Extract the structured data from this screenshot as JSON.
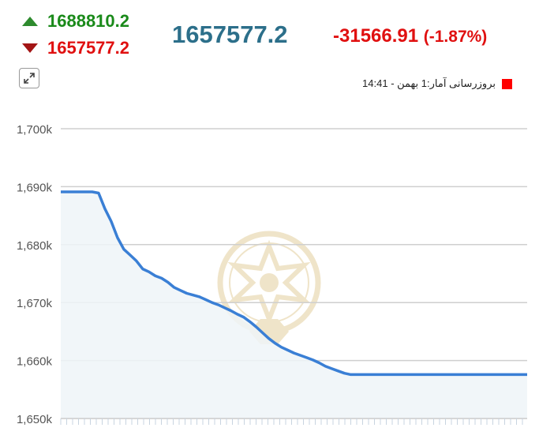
{
  "header": {
    "high_value": "1688810.2",
    "low_value": "1657577.2",
    "last_value": "1657577.2",
    "change_value": "-31566.91",
    "change_percent": "(-1.87%)",
    "up_icon": "triangle-up-icon",
    "down_icon": "triangle-down-icon",
    "expand_icon": "expand-icon"
  },
  "legend": {
    "label": "بروزرسانی آمار:1 بهمن - 14:41",
    "color": "#ff0000"
  },
  "colors": {
    "line": "#3a7fd5",
    "area": "#eef4f8",
    "up": "#2e8b2e",
    "down": "#a31515",
    "last": "#2c6f8a",
    "change": "#e01010"
  },
  "chart_data": {
    "type": "area",
    "title": "",
    "xlabel": "",
    "ylabel": "",
    "ylim": [
      1650000,
      1700000
    ],
    "yticks": [
      1650000,
      1660000,
      1670000,
      1680000,
      1690000,
      1700000
    ],
    "ytick_labels": [
      "1,650k",
      "1,660k",
      "1,670k",
      "1,680k",
      "1,690k",
      "1,700k"
    ],
    "grid": true,
    "series": [
      {
        "values": [
          1689100,
          1689100,
          1689100,
          1689100,
          1689100,
          1689100,
          1688900,
          1686200,
          1684000,
          1681200,
          1679200,
          1678200,
          1677200,
          1675800,
          1675300,
          1674600,
          1674200,
          1673500,
          1672600,
          1672100,
          1671600,
          1671300,
          1671000,
          1670500,
          1670000,
          1669600,
          1669100,
          1668600,
          1668000,
          1667500,
          1666700,
          1665800,
          1664800,
          1663800,
          1663000,
          1662300,
          1661800,
          1661300,
          1660900,
          1660500,
          1660100,
          1659600,
          1659000,
          1658600,
          1658200,
          1657800,
          1657577,
          1657577,
          1657577,
          1657577,
          1657577,
          1657577,
          1657577,
          1657577,
          1657577,
          1657577,
          1657577,
          1657577,
          1657577,
          1657577,
          1657577,
          1657577,
          1657577,
          1657577,
          1657577,
          1657577,
          1657577,
          1657577,
          1657577,
          1657577,
          1657577,
          1657577,
          1657577,
          1657577,
          1657577
        ]
      }
    ]
  }
}
